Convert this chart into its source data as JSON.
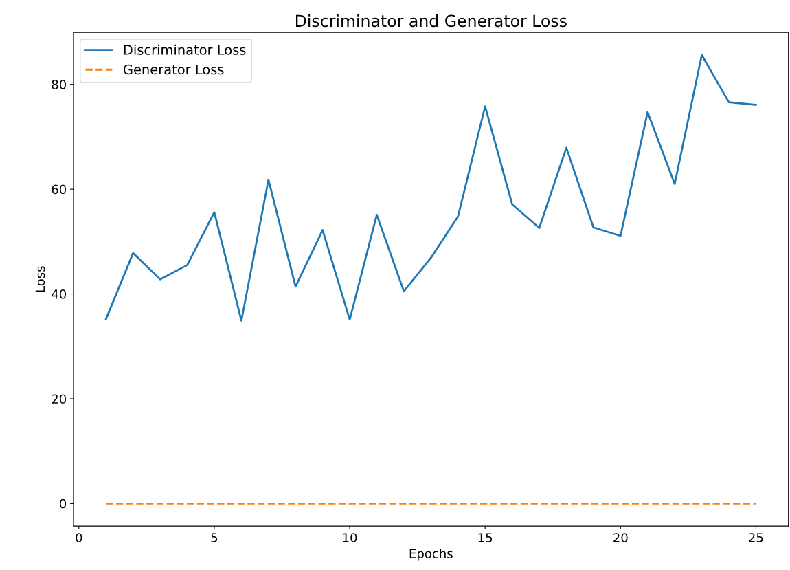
{
  "chart_data": {
    "type": "line",
    "title": "Discriminator and Generator Loss",
    "xlabel": "Epochs",
    "ylabel": "Loss",
    "x": [
      1,
      2,
      3,
      4,
      5,
      6,
      7,
      8,
      9,
      10,
      11,
      12,
      13,
      14,
      15,
      16,
      17,
      18,
      19,
      20,
      21,
      22,
      23,
      24,
      25
    ],
    "series": [
      {
        "name": "Discriminator Loss",
        "color": "#1f77b4",
        "line_style": "solid",
        "values": [
          35.2,
          47.8,
          42.8,
          45.5,
          55.6,
          34.9,
          61.8,
          41.4,
          52.2,
          35.1,
          55.1,
          40.5,
          46.9,
          54.8,
          75.8,
          57.1,
          52.6,
          67.9,
          52.7,
          51.1,
          74.7,
          61.0,
          85.6,
          76.6,
          76.1
        ]
      },
      {
        "name": "Generator Loss",
        "color": "#ff7f0e",
        "line_style": "dashed",
        "values": [
          0,
          0,
          0,
          0,
          0,
          0,
          0,
          0,
          0,
          0,
          0,
          0,
          0,
          0,
          0,
          0,
          0,
          0,
          0,
          0,
          0,
          0,
          0,
          0,
          0
        ]
      }
    ],
    "xlim": [
      -0.2,
      26.2
    ],
    "xticks": [
      0,
      5,
      10,
      15,
      20,
      25
    ],
    "ylim": [
      -4.3,
      89.9
    ],
    "yticks": [
      0,
      20,
      40,
      60,
      80
    ],
    "legend": "upper left",
    "grid": false
  }
}
